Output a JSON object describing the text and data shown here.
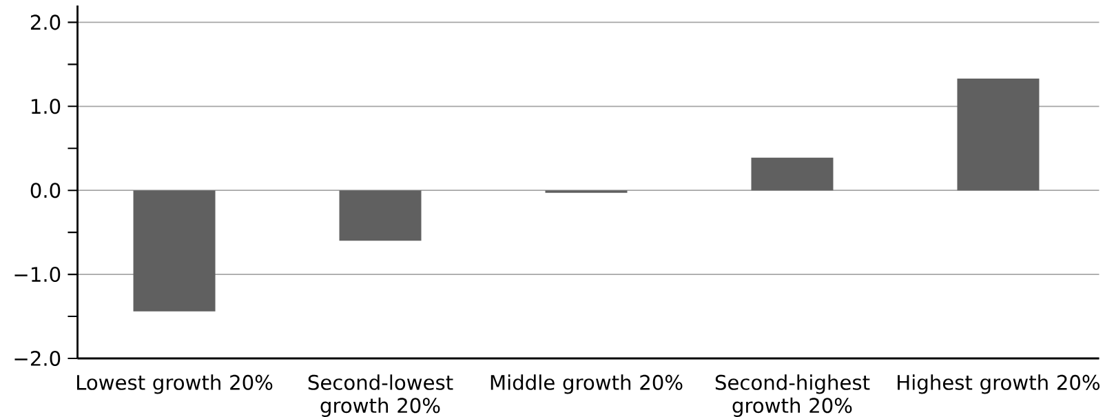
{
  "chart_data": {
    "type": "bar",
    "categories": [
      "Lowest growth 20%",
      "Second-lowest growth 20%",
      "Middle growth 20%",
      "Second-highest growth 20%",
      "Highest growth 20%"
    ],
    "values": [
      -1.44,
      -0.6,
      -0.03,
      0.39,
      1.33
    ],
    "color": "#606060",
    "ylim": [
      -2,
      2.2
    ],
    "yticks": [
      {
        "value": -2,
        "label": "−2.0"
      },
      {
        "value": -1.5,
        "label": null
      },
      {
        "value": -1,
        "label": "−1.0"
      },
      {
        "value": -0.5,
        "label": null
      },
      {
        "value": 0,
        "label": "0.0"
      },
      {
        "value": 0.5,
        "label": null
      },
      {
        "value": 1,
        "label": "1.0"
      },
      {
        "value": 1.5,
        "label": null
      },
      {
        "value": 2,
        "label": "2.0"
      }
    ],
    "grid": "y"
  }
}
